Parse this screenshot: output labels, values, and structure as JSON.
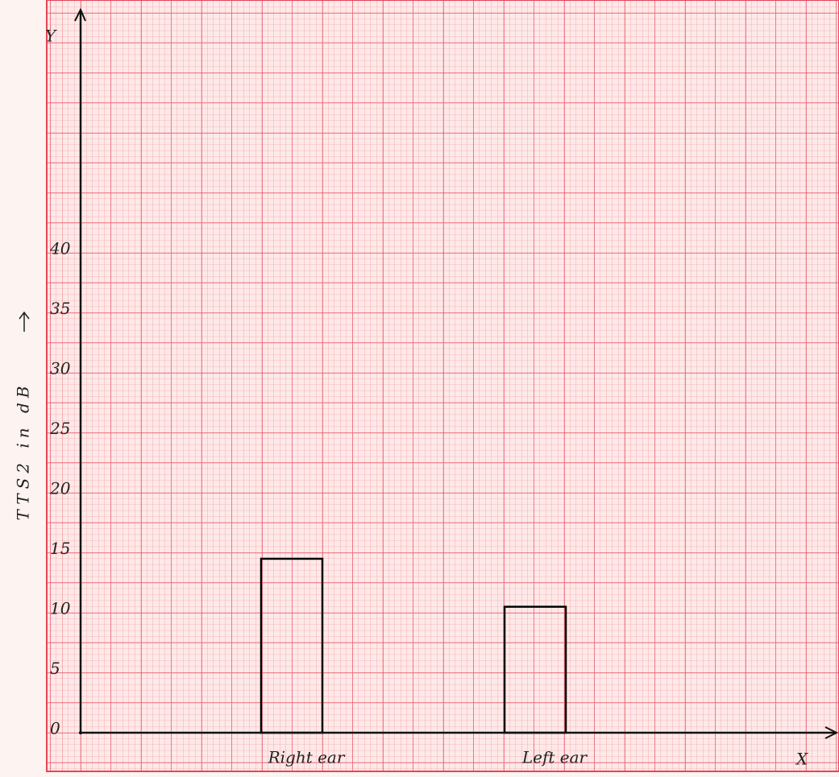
{
  "chart_data": {
    "type": "bar",
    "y_label": "TTS2 in dB",
    "y_axis_letter": "Y",
    "x_axis_letter": "X",
    "categories": [
      "Right ear",
      "Left ear"
    ],
    "values": [
      14.5,
      10.5
    ],
    "color": "#000000",
    "ylim": [
      0,
      60
    ],
    "yticks": [
      0,
      5,
      10,
      15,
      20,
      25,
      30,
      35,
      40
    ],
    "grid": true
  }
}
